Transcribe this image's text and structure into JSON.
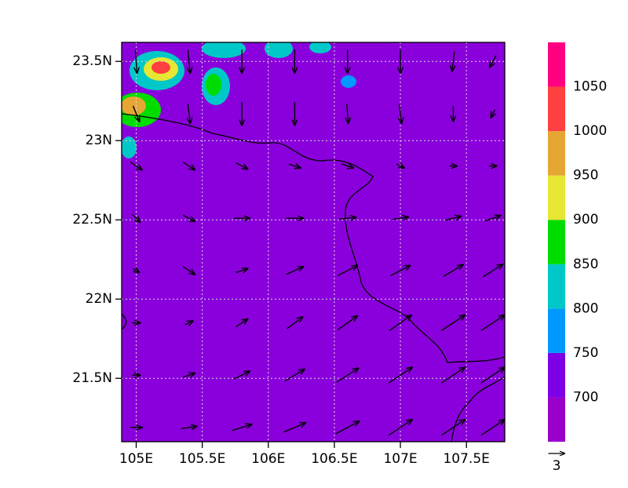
{
  "chart_data": {
    "type": "quiver",
    "xlim": [
      104.89,
      107.79
    ],
    "ylim": [
      21.1,
      23.62
    ],
    "xticks": [
      {
        "value": 105,
        "label": "105E"
      },
      {
        "value": 105.5,
        "label": "105.5E"
      },
      {
        "value": 106,
        "label": "106E"
      },
      {
        "value": 106.5,
        "label": "106.5E"
      },
      {
        "value": 107,
        "label": "107E"
      },
      {
        "value": 107.5,
        "label": "107.5E"
      }
    ],
    "yticks": [
      {
        "value": 21.5,
        "label": "21.5N"
      },
      {
        "value": 22,
        "label": "22N"
      },
      {
        "value": 22.5,
        "label": "22.5N"
      },
      {
        "value": 23,
        "label": "23N"
      },
      {
        "value": 23.5,
        "label": "23.5N"
      }
    ],
    "grid": true,
    "background_color": "#8a00dc",
    "vector_color": "#000000",
    "reference_vector": 3,
    "vectors": {
      "lon": [
        105.0,
        105.4,
        105.8,
        106.2,
        106.6,
        107.0,
        107.4,
        107.7
      ],
      "lat": [
        23.5,
        23.17,
        22.84,
        22.51,
        22.18,
        21.85,
        21.52,
        21.19
      ],
      "u": [
        [
          0.2,
          0.3,
          0,
          0,
          0,
          0,
          -0.3,
          -0.8
        ],
        [
          0.8,
          0.3,
          0,
          0,
          0.2,
          0.3,
          0,
          -0.5
        ],
        [
          1.5,
          1.5,
          1.5,
          1.5,
          1.5,
          1,
          1,
          1
        ],
        [
          1,
          1.5,
          2,
          2.2,
          2.2,
          2,
          2,
          2
        ],
        [
          0.8,
          1.5,
          1.5,
          2.2,
          2.5,
          2.5,
          2.5,
          2.5
        ],
        [
          1,
          1,
          1.5,
          2,
          2.5,
          2.8,
          3,
          3
        ],
        [
          1,
          1.5,
          2,
          2.5,
          2.8,
          3,
          3,
          3
        ],
        [
          1.5,
          2,
          2.5,
          2.8,
          3,
          3,
          3,
          3
        ]
      ],
      "v": [
        [
          -3,
          -3,
          -3,
          -3,
          -3,
          -3,
          -2.5,
          -1.5
        ],
        [
          -2,
          -2.5,
          -3,
          -3,
          -2.5,
          -2.5,
          -2,
          -1
        ],
        [
          -1,
          -1,
          -0.8,
          -0.5,
          -0.5,
          -0.5,
          0,
          0
        ],
        [
          -1,
          -0.8,
          0,
          0,
          0.2,
          0.3,
          0.5,
          0.7
        ],
        [
          -0.5,
          -1,
          0.5,
          1,
          1.3,
          1.3,
          1.5,
          1.6
        ],
        [
          0,
          0.5,
          1,
          1.5,
          1.8,
          2,
          2,
          2
        ],
        [
          0,
          0.5,
          1,
          1.5,
          1.8,
          2,
          2,
          2
        ],
        [
          0,
          0.3,
          0.8,
          1.2,
          1.6,
          2,
          2,
          2
        ]
      ]
    },
    "colorbar": {
      "clim": [
        650,
        1100
      ],
      "levels": [
        700,
        750,
        800,
        850,
        900,
        950,
        1000,
        1050
      ],
      "colors": [
        "#9a00cc",
        "#7d00e6",
        "#0099ff",
        "#00c8c8",
        "#00dc00",
        "#e6e633",
        "#e6a633",
        "#ff4040",
        "#ff0080"
      ]
    }
  }
}
